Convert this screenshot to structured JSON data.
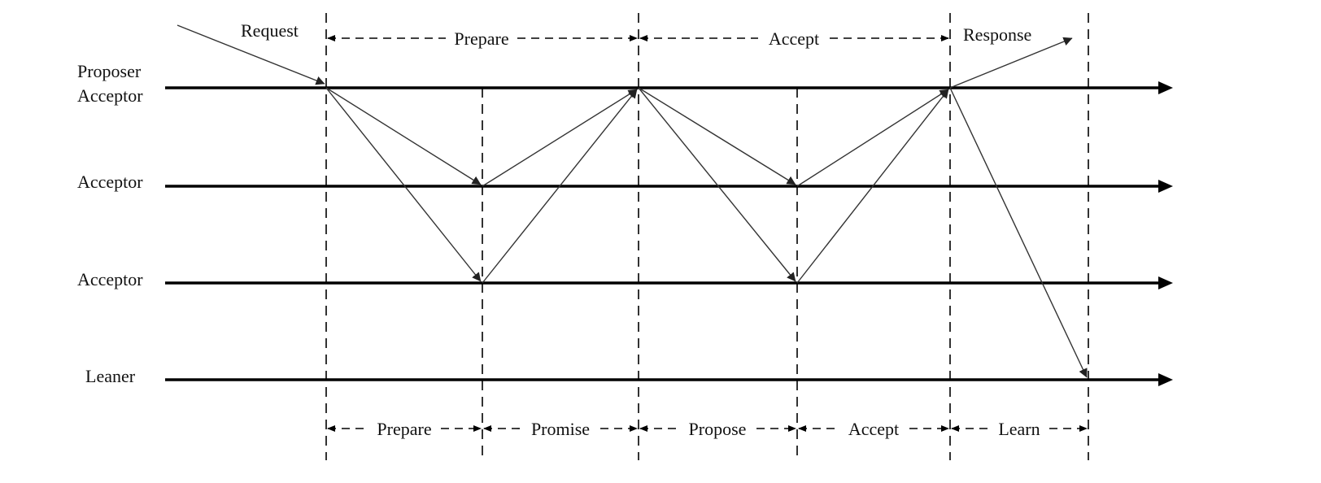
{
  "participants": {
    "proposer_top": "Proposer",
    "proposer_bottom": "Acceptor",
    "acceptor_1": "Acceptor",
    "acceptor_2": "Acceptor",
    "learner": "Leaner"
  },
  "messages": {
    "request": "Request",
    "response": "Response"
  },
  "top_phases": {
    "prepare": "Prepare",
    "accept": "Accept"
  },
  "bottom_phases": {
    "prepare": "Prepare",
    "promise": "Promise",
    "propose": "Propose",
    "accept": "Accept",
    "learn": "Learn"
  }
}
